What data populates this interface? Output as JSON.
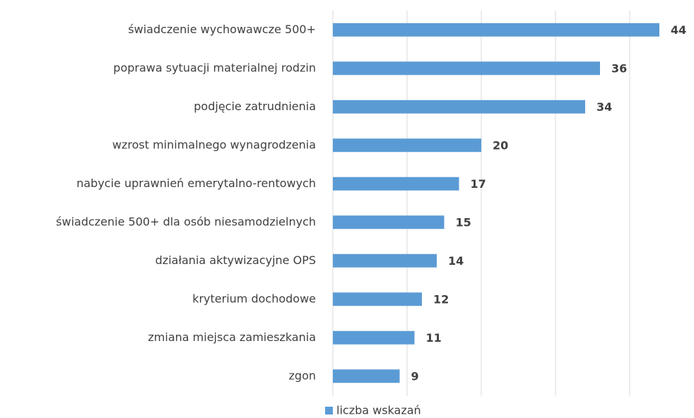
{
  "chart_data": {
    "type": "bar",
    "orientation": "horizontal",
    "categories": [
      "świadczenie wychowawcze 500+",
      "poprawa sytuacji materialnej rodzin",
      "podjęcie zatrudnienia",
      "wzrost minimalnego wynagrodzenia",
      "nabycie uprawnień emerytalno-rentowych",
      "świadczenie 500+ dla osób niesamodzielnych",
      "działania aktywizacyjne OPS",
      "kryterium dochodowe",
      "zmiana miejsca zamieszkania",
      "zgon"
    ],
    "series": [
      {
        "name": "liczba wskazań",
        "color": "#5b9bd5",
        "values": [
          44,
          36,
          34,
          20,
          17,
          15,
          14,
          12,
          11,
          9
        ]
      }
    ],
    "xlim": [
      0,
      50
    ],
    "xticks": [
      0,
      10,
      20,
      30,
      40
    ],
    "grid": true,
    "legend": "bottom"
  }
}
